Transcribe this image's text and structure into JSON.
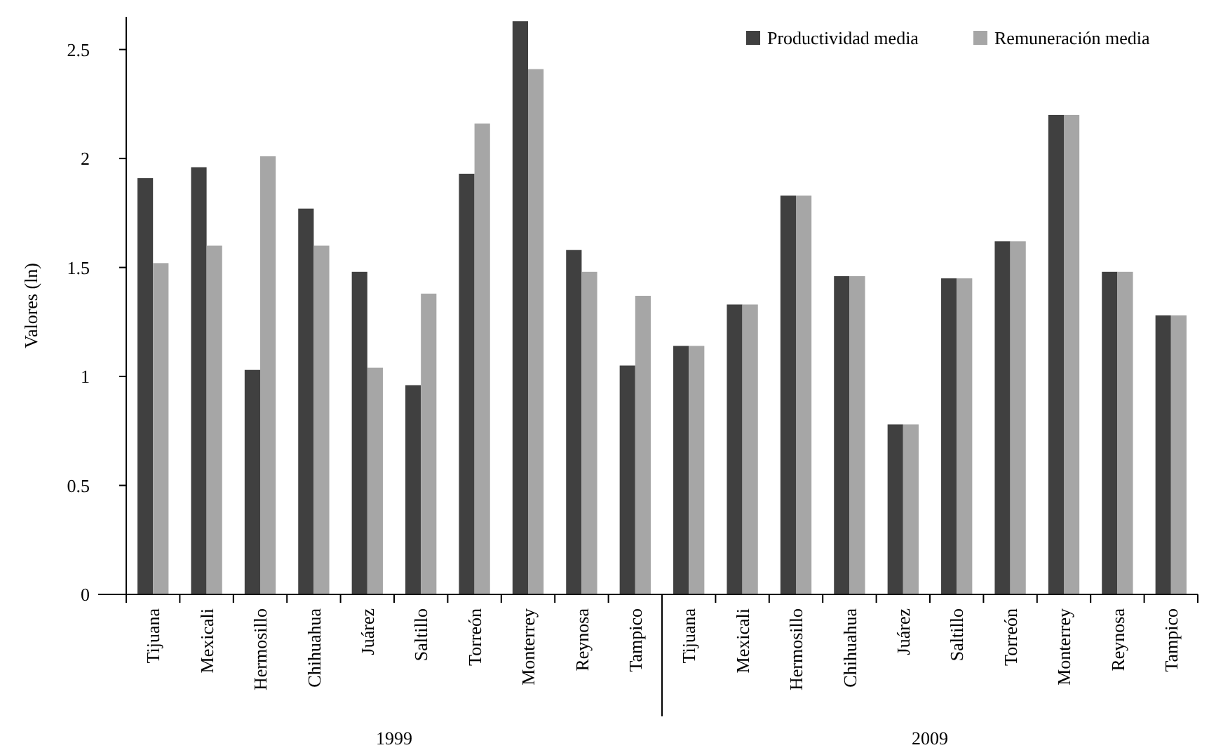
{
  "chart_data": {
    "type": "bar",
    "ylabel": "Valores (ln)",
    "categories": [
      "Tijuana",
      "Mexicali",
      "Hermosillo",
      "Chihuahua",
      "Juárez",
      "Saltillo",
      "Torreón",
      "Monterrey",
      "Reynosa",
      "Tampico",
      "Tijuana",
      "Mexicali",
      "Hermosillo",
      "Chihuahua",
      "Juárez",
      "Saltillo",
      "Torreón",
      "Monterrey",
      "Reynosa",
      "Tampico"
    ],
    "series": [
      {
        "name": "Productividad media",
        "color": "#404040",
        "values": [
          1.91,
          1.96,
          1.03,
          1.77,
          1.48,
          0.96,
          1.93,
          2.63,
          1.58,
          1.05,
          1.14,
          1.33,
          1.83,
          1.46,
          0.78,
          1.45,
          1.62,
          2.2,
          1.48,
          1.28
        ]
      },
      {
        "name": "Remuneración media",
        "color": "#a6a6a6",
        "values": [
          1.52,
          1.6,
          2.01,
          1.6,
          1.04,
          1.38,
          2.16,
          2.41,
          1.48,
          1.37,
          1.14,
          1.33,
          1.83,
          1.46,
          0.78,
          1.45,
          1.62,
          2.2,
          1.48,
          1.28
        ]
      }
    ],
    "annotations": [
      "1999",
      "2009"
    ],
    "ylim": [
      0,
      2.65
    ],
    "yticks": [
      0,
      0.5,
      1,
      1.5,
      2,
      2.5
    ],
    "legend": "top right",
    "grid": false
  }
}
